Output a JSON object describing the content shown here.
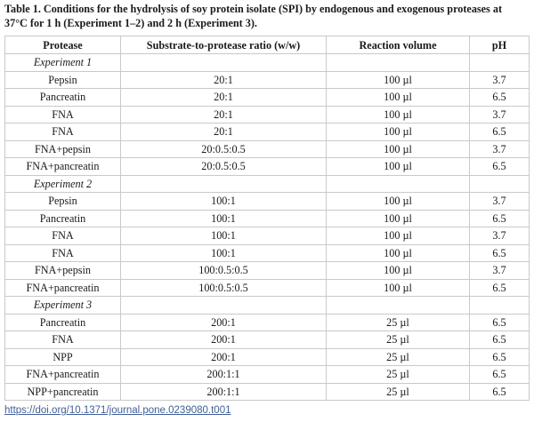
{
  "caption": "Table 1.  Conditions for the hydrolysis of soy protein isolate (SPI) by endogenous and exogenous proteases at 37°C for 1 h (Experiment 1–2) and 2 h (Experiment 3).",
  "headers": [
    "Protease",
    "Substrate-to-protease ratio (w/w)",
    "Reaction volume",
    "pH"
  ],
  "groups": [
    {
      "title": "Experiment 1",
      "rows": [
        [
          "Pepsin",
          "20:1",
          "100 µl",
          "3.7"
        ],
        [
          "Pancreatin",
          "20:1",
          "100 µl",
          "6.5"
        ],
        [
          "FNA",
          "20:1",
          "100 µl",
          "3.7"
        ],
        [
          "FNA",
          "20:1",
          "100 µl",
          "6.5"
        ],
        [
          "FNA+pepsin",
          "20:0.5:0.5",
          "100 µl",
          "3.7"
        ],
        [
          "FNA+pancreatin",
          "20:0.5:0.5",
          "100 µl",
          "6.5"
        ]
      ]
    },
    {
      "title": "Experiment 2",
      "rows": [
        [
          "Pepsin",
          "100:1",
          "100 µl",
          "3.7"
        ],
        [
          "Pancreatin",
          "100:1",
          "100 µl",
          "6.5"
        ],
        [
          "FNA",
          "100:1",
          "100 µl",
          "3.7"
        ],
        [
          "FNA",
          "100:1",
          "100 µl",
          "6.5"
        ],
        [
          "FNA+pepsin",
          "100:0.5:0.5",
          "100 µl",
          "3.7"
        ],
        [
          "FNA+pancreatin",
          "100:0.5:0.5",
          "100 µl",
          "6.5"
        ]
      ]
    },
    {
      "title": "Experiment 3",
      "rows": [
        [
          "Pancreatin",
          "200:1",
          "25 µl",
          "6.5"
        ],
        [
          "FNA",
          "200:1",
          "25 µl",
          "6.5"
        ],
        [
          "NPP",
          "200:1",
          "25 µl",
          "6.5"
        ],
        [
          "FNA+pancreatin",
          "200:1:1",
          "25 µl",
          "6.5"
        ],
        [
          "NPP+pancreatin",
          "200:1:1",
          "25 µl",
          "6.5"
        ]
      ]
    }
  ],
  "doi_link": "https://doi.org/10.1371/journal.pone.0239080.t001"
}
